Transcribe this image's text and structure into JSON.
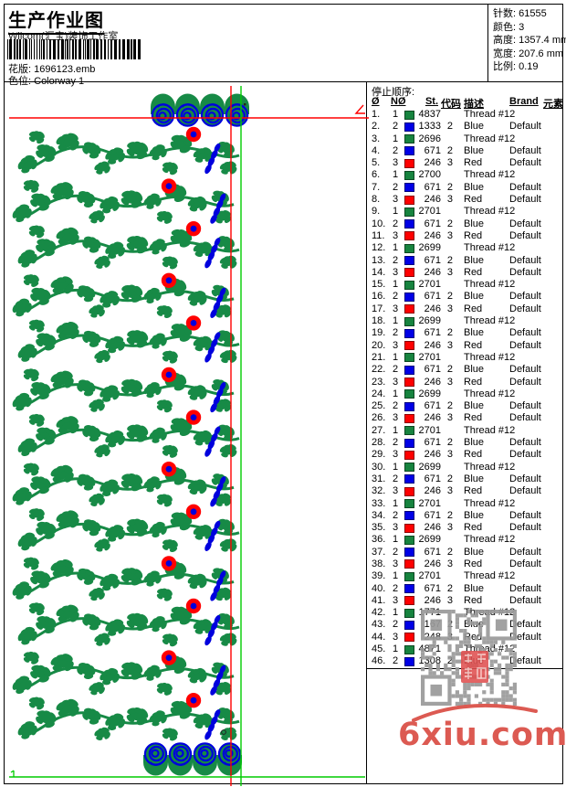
{
  "page": {
    "title": "生产作业图",
    "company": "Wilcom(汇宝)装饰工作室",
    "design_file": {
      "label": "花版:",
      "value": "1696123.emb"
    },
    "colorway": {
      "label": "色位:",
      "value": "Colorway 1"
    }
  },
  "info": {
    "rows": [
      {
        "label": "针数:",
        "value": "61555"
      },
      {
        "label": "颜色:",
        "value": "3"
      },
      {
        "label": "高度:",
        "value": "1357.4 mm"
      },
      {
        "label": "宽度:",
        "value": "207.6 mm"
      },
      {
        "label": "比例:",
        "value": "0.19"
      }
    ]
  },
  "table": {
    "section_label": "停止顺序:",
    "columns": [
      "Ø",
      "NØ",
      "St.",
      "代码",
      "描述",
      "Brand",
      "元素"
    ],
    "rows": [
      {
        "seq": "1.",
        "n": "1",
        "c": "green",
        "st": "4837",
        "code": "",
        "desc": "Thread #12",
        "brand": ""
      },
      {
        "seq": "2.",
        "n": "2",
        "c": "blue",
        "st": "1333",
        "code": "2",
        "desc": "Blue",
        "brand": "Default"
      },
      {
        "seq": "3.",
        "n": "1",
        "c": "green",
        "st": "2696",
        "code": "",
        "desc": "Thread #12",
        "brand": ""
      },
      {
        "seq": "4.",
        "n": "2",
        "c": "blue",
        "st": "671",
        "code": "2",
        "desc": "Blue",
        "brand": "Default"
      },
      {
        "seq": "5.",
        "n": "3",
        "c": "red",
        "st": "246",
        "code": "3",
        "desc": "Red",
        "brand": "Default"
      },
      {
        "seq": "6.",
        "n": "1",
        "c": "green",
        "st": "2700",
        "code": "",
        "desc": "Thread #12",
        "brand": ""
      },
      {
        "seq": "7.",
        "n": "2",
        "c": "blue",
        "st": "671",
        "code": "2",
        "desc": "Blue",
        "brand": "Default"
      },
      {
        "seq": "8.",
        "n": "3",
        "c": "red",
        "st": "246",
        "code": "3",
        "desc": "Red",
        "brand": "Default"
      },
      {
        "seq": "9.",
        "n": "1",
        "c": "green",
        "st": "2701",
        "code": "",
        "desc": "Thread #12",
        "brand": ""
      },
      {
        "seq": "10.",
        "n": "2",
        "c": "blue",
        "st": "671",
        "code": "2",
        "desc": "Blue",
        "brand": "Default"
      },
      {
        "seq": "11.",
        "n": "3",
        "c": "red",
        "st": "246",
        "code": "3",
        "desc": "Red",
        "brand": "Default"
      },
      {
        "seq": "12.",
        "n": "1",
        "c": "green",
        "st": "2699",
        "code": "",
        "desc": "Thread #12",
        "brand": ""
      },
      {
        "seq": "13.",
        "n": "2",
        "c": "blue",
        "st": "671",
        "code": "2",
        "desc": "Blue",
        "brand": "Default"
      },
      {
        "seq": "14.",
        "n": "3",
        "c": "red",
        "st": "246",
        "code": "3",
        "desc": "Red",
        "brand": "Default"
      },
      {
        "seq": "15.",
        "n": "1",
        "c": "green",
        "st": "2701",
        "code": "",
        "desc": "Thread #12",
        "brand": ""
      },
      {
        "seq": "16.",
        "n": "2",
        "c": "blue",
        "st": "671",
        "code": "2",
        "desc": "Blue",
        "brand": "Default"
      },
      {
        "seq": "17.",
        "n": "3",
        "c": "red",
        "st": "246",
        "code": "3",
        "desc": "Red",
        "brand": "Default"
      },
      {
        "seq": "18.",
        "n": "1",
        "c": "green",
        "st": "2699",
        "code": "",
        "desc": "Thread #12",
        "brand": ""
      },
      {
        "seq": "19.",
        "n": "2",
        "c": "blue",
        "st": "671",
        "code": "2",
        "desc": "Blue",
        "brand": "Default"
      },
      {
        "seq": "20.",
        "n": "3",
        "c": "red",
        "st": "246",
        "code": "3",
        "desc": "Red",
        "brand": "Default"
      },
      {
        "seq": "21.",
        "n": "1",
        "c": "green",
        "st": "2701",
        "code": "",
        "desc": "Thread #12",
        "brand": ""
      },
      {
        "seq": "22.",
        "n": "2",
        "c": "blue",
        "st": "671",
        "code": "2",
        "desc": "Blue",
        "brand": "Default"
      },
      {
        "seq": "23.",
        "n": "3",
        "c": "red",
        "st": "246",
        "code": "3",
        "desc": "Red",
        "brand": "Default"
      },
      {
        "seq": "24.",
        "n": "1",
        "c": "green",
        "st": "2699",
        "code": "",
        "desc": "Thread #12",
        "brand": ""
      },
      {
        "seq": "25.",
        "n": "2",
        "c": "blue",
        "st": "671",
        "code": "2",
        "desc": "Blue",
        "brand": "Default"
      },
      {
        "seq": "26.",
        "n": "3",
        "c": "red",
        "st": "246",
        "code": "3",
        "desc": "Red",
        "brand": "Default"
      },
      {
        "seq": "27.",
        "n": "1",
        "c": "green",
        "st": "2701",
        "code": "",
        "desc": "Thread #12",
        "brand": ""
      },
      {
        "seq": "28.",
        "n": "2",
        "c": "blue",
        "st": "671",
        "code": "2",
        "desc": "Blue",
        "brand": "Default"
      },
      {
        "seq": "29.",
        "n": "3",
        "c": "red",
        "st": "246",
        "code": "3",
        "desc": "Red",
        "brand": "Default"
      },
      {
        "seq": "30.",
        "n": "1",
        "c": "green",
        "st": "2699",
        "code": "",
        "desc": "Thread #12",
        "brand": ""
      },
      {
        "seq": "31.",
        "n": "2",
        "c": "blue",
        "st": "671",
        "code": "2",
        "desc": "Blue",
        "brand": "Default"
      },
      {
        "seq": "32.",
        "n": "3",
        "c": "red",
        "st": "246",
        "code": "3",
        "desc": "Red",
        "brand": "Default"
      },
      {
        "seq": "33.",
        "n": "1",
        "c": "green",
        "st": "2701",
        "code": "",
        "desc": "Thread #12",
        "brand": ""
      },
      {
        "seq": "34.",
        "n": "2",
        "c": "blue",
        "st": "671",
        "code": "2",
        "desc": "Blue",
        "brand": "Default"
      },
      {
        "seq": "35.",
        "n": "3",
        "c": "red",
        "st": "246",
        "code": "3",
        "desc": "Red",
        "brand": "Default"
      },
      {
        "seq": "36.",
        "n": "1",
        "c": "green",
        "st": "2699",
        "code": "",
        "desc": "Thread #12",
        "brand": ""
      },
      {
        "seq": "37.",
        "n": "2",
        "c": "blue",
        "st": "671",
        "code": "2",
        "desc": "Blue",
        "brand": "Default"
      },
      {
        "seq": "38.",
        "n": "3",
        "c": "red",
        "st": "246",
        "code": "3",
        "desc": "Red",
        "brand": "Default"
      },
      {
        "seq": "39.",
        "n": "1",
        "c": "green",
        "st": "2701",
        "code": "",
        "desc": "Thread #12",
        "brand": ""
      },
      {
        "seq": "40.",
        "n": "2",
        "c": "blue",
        "st": "671",
        "code": "2",
        "desc": "Blue",
        "brand": "Default"
      },
      {
        "seq": "41.",
        "n": "3",
        "c": "red",
        "st": "246",
        "code": "3",
        "desc": "Red",
        "brand": "Default"
      },
      {
        "seq": "42.",
        "n": "1",
        "c": "green",
        "st": "1771",
        "code": "",
        "desc": "Thread #12",
        "brand": ""
      },
      {
        "seq": "43.",
        "n": "2",
        "c": "blue",
        "st": "167",
        "code": "2",
        "desc": "Blue",
        "brand": "Default"
      },
      {
        "seq": "44.",
        "n": "3",
        "c": "red",
        "st": "248",
        "code": "3",
        "desc": "Red",
        "brand": "Default"
      },
      {
        "seq": "45.",
        "n": "1",
        "c": "green",
        "st": "4871",
        "code": "",
        "desc": "Thread #12",
        "brand": ""
      },
      {
        "seq": "46.",
        "n": "2",
        "c": "blue",
        "st": "1308",
        "code": "2",
        "desc": "Blue",
        "brand": "Default"
      }
    ]
  },
  "watermark": {
    "domain": "6xiu.com"
  },
  "colors": {
    "swatch_green": "#17843F",
    "swatch_blue": "#0000E6",
    "swatch_red": "#FF0000",
    "design_green": "#178A46",
    "design_blue": "#0000DD",
    "design_red": "#FF0000",
    "guide_red": "#FF0000",
    "guide_green": "#00CC00",
    "qr_grey": "#9A9A9A",
    "watermark_red": "#DC5A52",
    "seal_red": "#E05050"
  }
}
